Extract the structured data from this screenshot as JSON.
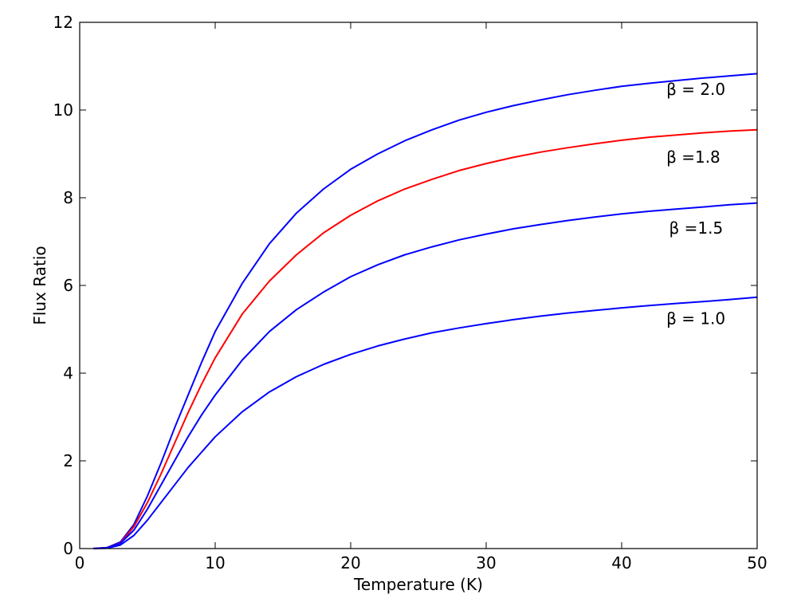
{
  "chart_data": {
    "type": "line",
    "xlabel": "Temperature (K)",
    "ylabel": "Flux Ratio",
    "xlim": [
      0,
      50
    ],
    "ylim": [
      0,
      12
    ],
    "xticks": [
      "0",
      "10",
      "20",
      "30",
      "40",
      "50"
    ],
    "yticks": [
      "0",
      "2",
      "4",
      "6",
      "8",
      "10",
      "12"
    ],
    "grid": false,
    "x": [
      1,
      2,
      3,
      4,
      5,
      6,
      7,
      8,
      9,
      10,
      12,
      14,
      16,
      18,
      20,
      22,
      24,
      26,
      28,
      30,
      32,
      34,
      36,
      38,
      40,
      42,
      44,
      46,
      48,
      50
    ],
    "series": [
      {
        "label": "β = 2.0",
        "color": "#0000ff",
        "values": [
          0.0,
          0.02,
          0.15,
          0.55,
          1.2,
          1.95,
          2.75,
          3.5,
          4.25,
          4.95,
          6.05,
          6.95,
          7.65,
          8.2,
          8.65,
          9.0,
          9.3,
          9.55,
          9.77,
          9.95,
          10.1,
          10.23,
          10.35,
          10.45,
          10.54,
          10.61,
          10.67,
          10.73,
          10.78,
          10.83
        ]
      },
      {
        "label": "β =1.8",
        "color": "#ff0000",
        "values": [
          0.0,
          0.02,
          0.13,
          0.5,
          1.05,
          1.7,
          2.4,
          3.1,
          3.75,
          4.35,
          5.35,
          6.1,
          6.7,
          7.2,
          7.6,
          7.93,
          8.2,
          8.42,
          8.62,
          8.78,
          8.92,
          9.04,
          9.14,
          9.23,
          9.31,
          9.38,
          9.43,
          9.48,
          9.52,
          9.55
        ]
      },
      {
        "label": "β =1.5",
        "color": "#0000ff",
        "values": [
          0.0,
          0.02,
          0.12,
          0.42,
          0.9,
          1.45,
          2.0,
          2.55,
          3.05,
          3.5,
          4.3,
          4.95,
          5.45,
          5.85,
          6.2,
          6.47,
          6.7,
          6.88,
          7.04,
          7.17,
          7.29,
          7.39,
          7.48,
          7.56,
          7.63,
          7.69,
          7.74,
          7.79,
          7.84,
          7.88
        ]
      },
      {
        "label": "β = 1.0",
        "color": "#0000ff",
        "values": [
          0.0,
          0.01,
          0.08,
          0.3,
          0.65,
          1.05,
          1.45,
          1.85,
          2.2,
          2.55,
          3.12,
          3.57,
          3.92,
          4.2,
          4.43,
          4.62,
          4.78,
          4.92,
          5.03,
          5.13,
          5.22,
          5.3,
          5.37,
          5.43,
          5.49,
          5.54,
          5.59,
          5.63,
          5.68,
          5.73
        ]
      }
    ],
    "annotations": [
      {
        "text": "β = 2.0",
        "x": 43.3,
        "y": 10.35
      },
      {
        "text": "β =1.8",
        "x": 43.3,
        "y": 8.8
      },
      {
        "text": "β =1.5",
        "x": 43.5,
        "y": 7.18
      },
      {
        "text": "β = 1.0",
        "x": 43.3,
        "y": 5.12
      }
    ]
  }
}
